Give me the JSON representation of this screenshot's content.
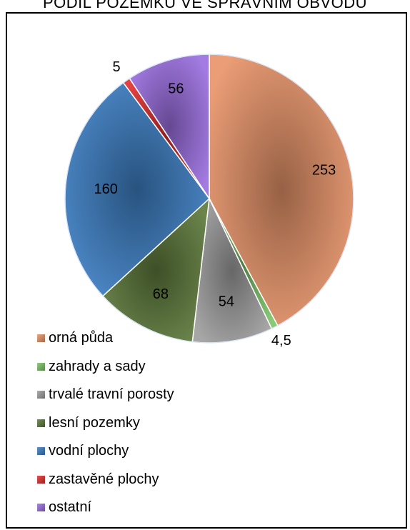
{
  "header": {
    "title": "PODÍL POZEMKŮ VE SPRÁVNÍM OBVODU"
  },
  "chart_data": {
    "type": "pie",
    "legend_position": "bottom-left",
    "categories": [
      "orná půda",
      "zahrady a sady",
      "trvalé travní porosty",
      "lesní pozemky",
      "vodní plochy",
      "zastavěné plochy",
      "ostatní"
    ],
    "values": [
      253,
      4.5,
      54,
      68,
      160,
      5,
      56
    ],
    "data_labels": [
      "253",
      "4,5",
      "54",
      "68",
      "160",
      "5",
      "56"
    ],
    "colors": [
      "#E8956A",
      "#7DC46A",
      "#9E9E9E",
      "#5E7A3C",
      "#3D7FC4",
      "#E03030",
      "#9B6FE0"
    ]
  }
}
